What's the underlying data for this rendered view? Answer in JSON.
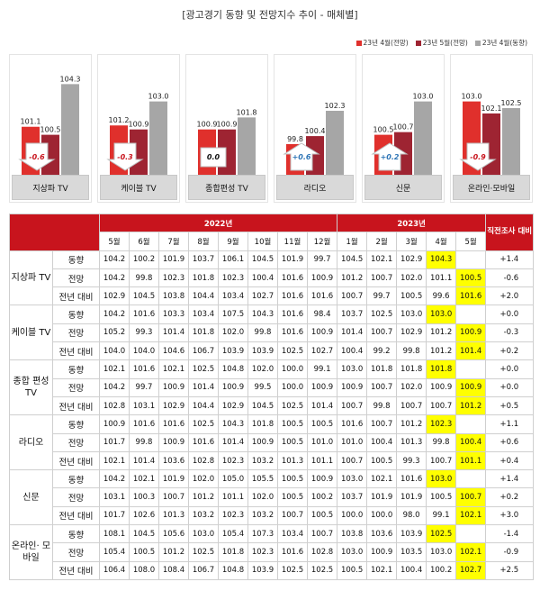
{
  "title": "[광고경기 동향 및 전망지수 추이 - 매체별]",
  "colors": {
    "s1": "#e0302c",
    "s2": "#9e2432",
    "s3": "#a6a6a6",
    "header": "#c8141d",
    "highlight": "#ffff00"
  },
  "chart_data": {
    "type": "bar",
    "legend": [
      "23년 4월(전망)",
      "23년 5월(전망)",
      "23년 4월(동향)"
    ],
    "categories": [
      "지상파 TV",
      "케이블 TV",
      "종합편성 TV",
      "라디오",
      "신문",
      "온라인·모바일"
    ],
    "series": [
      {
        "name": "23년 4월(전망)",
        "values": [
          101.1,
          101.2,
          100.9,
          99.8,
          100.5,
          103.0
        ]
      },
      {
        "name": "23년 5월(전망)",
        "values": [
          100.5,
          100.9,
          100.9,
          100.4,
          100.7,
          102.1
        ]
      },
      {
        "name": "23년 4월(동향)",
        "values": [
          104.3,
          103.0,
          101.8,
          102.3,
          103.0,
          102.5
        ]
      }
    ],
    "ylim": [
      97.5,
      105
    ],
    "changes": [
      "-0.6",
      "-0.3",
      "0.0",
      "+0.6",
      "+0.2",
      "-0.9"
    ]
  },
  "table": {
    "col_first": "",
    "year_2022": "2022년",
    "year_2023": "2023년",
    "diff_header": "직전조사 대비",
    "months_2022": [
      "5월",
      "6월",
      "7월",
      "8월",
      "9월",
      "10월",
      "11월",
      "12월"
    ],
    "months_2023": [
      "1월",
      "2월",
      "3월",
      "4월",
      "5월"
    ],
    "groups": [
      {
        "name": "지상파 TV",
        "rows": [
          {
            "type": "동향",
            "values": [
              "104.2",
              "100.2",
              "101.9",
              "103.7",
              "106.1",
              "104.5",
              "101.9",
              "99.7",
              "104.5",
              "102.1",
              "102.9",
              "104.3",
              ""
            ],
            "diff": "+1.4"
          },
          {
            "type": "전망",
            "values": [
              "104.2",
              "99.8",
              "102.3",
              "101.8",
              "102.3",
              "100.4",
              "101.6",
              "100.9",
              "101.2",
              "100.7",
              "102.0",
              "101.1",
              "100.5"
            ],
            "diff": "-0.6"
          },
          {
            "type": "전년 대비",
            "values": [
              "102.9",
              "104.5",
              "103.8",
              "104.4",
              "103.4",
              "102.7",
              "101.6",
              "101.6",
              "100.7",
              "99.7",
              "100.5",
              "99.6",
              "101.6"
            ],
            "diff": "+2.0"
          }
        ]
      },
      {
        "name": "케이블 TV",
        "rows": [
          {
            "type": "동향",
            "values": [
              "104.2",
              "101.6",
              "103.3",
              "103.4",
              "107.5",
              "104.3",
              "101.6",
              "98.4",
              "103.7",
              "102.5",
              "103.0",
              "103.0",
              ""
            ],
            "diff": "+0.0"
          },
          {
            "type": "전망",
            "values": [
              "105.2",
              "99.3",
              "101.4",
              "101.8",
              "102.0",
              "99.8",
              "101.6",
              "100.9",
              "101.4",
              "100.7",
              "102.9",
              "101.2",
              "100.9"
            ],
            "diff": "-0.3"
          },
          {
            "type": "전년 대비",
            "values": [
              "104.0",
              "104.0",
              "104.6",
              "106.7",
              "103.9",
              "103.9",
              "102.5",
              "102.7",
              "100.4",
              "99.2",
              "99.8",
              "101.2",
              "101.4"
            ],
            "diff": "+0.2"
          }
        ]
      },
      {
        "name": "종합 편성 TV",
        "rows": [
          {
            "type": "동향",
            "values": [
              "102.1",
              "101.6",
              "102.1",
              "102.5",
              "104.8",
              "102.0",
              "100.0",
              "99.1",
              "103.0",
              "101.8",
              "101.8",
              "101.8",
              ""
            ],
            "diff": "+0.0"
          },
          {
            "type": "전망",
            "values": [
              "104.2",
              "99.7",
              "100.9",
              "101.4",
              "100.9",
              "99.5",
              "100.0",
              "100.9",
              "100.9",
              "100.7",
              "102.0",
              "100.9",
              "100.9"
            ],
            "diff": "+0.0"
          },
          {
            "type": "전년 대비",
            "values": [
              "102.8",
              "103.1",
              "102.9",
              "104.4",
              "102.9",
              "104.5",
              "102.5",
              "101.4",
              "100.7",
              "99.8",
              "100.7",
              "100.7",
              "101.2"
            ],
            "diff": "+0.5"
          }
        ]
      },
      {
        "name": "라디오",
        "rows": [
          {
            "type": "동향",
            "values": [
              "100.9",
              "101.6",
              "101.6",
              "102.5",
              "104.3",
              "101.8",
              "100.5",
              "100.5",
              "101.6",
              "100.7",
              "101.2",
              "102.3",
              ""
            ],
            "diff": "+1.1"
          },
          {
            "type": "전망",
            "values": [
              "101.7",
              "99.8",
              "100.9",
              "101.6",
              "101.4",
              "100.9",
              "100.5",
              "101.0",
              "101.0",
              "100.4",
              "101.3",
              "99.8",
              "100.4"
            ],
            "diff": "+0.6"
          },
          {
            "type": "전년 대비",
            "values": [
              "102.1",
              "101.4",
              "103.6",
              "102.8",
              "102.3",
              "103.2",
              "101.3",
              "101.1",
              "100.7",
              "100.5",
              "99.3",
              "100.7",
              "101.1"
            ],
            "diff": "+0.4"
          }
        ]
      },
      {
        "name": "신문",
        "rows": [
          {
            "type": "동향",
            "values": [
              "104.2",
              "102.1",
              "101.9",
              "102.0",
              "105.0",
              "105.5",
              "100.5",
              "100.9",
              "103.0",
              "102.1",
              "101.6",
              "103.0",
              ""
            ],
            "diff": "+1.4"
          },
          {
            "type": "전망",
            "values": [
              "103.1",
              "100.3",
              "100.7",
              "101.2",
              "101.1",
              "102.0",
              "100.5",
              "100.2",
              "103.7",
              "101.9",
              "101.9",
              "100.5",
              "100.7"
            ],
            "diff": "+0.2"
          },
          {
            "type": "전년 대비",
            "values": [
              "101.7",
              "102.6",
              "101.3",
              "103.2",
              "102.3",
              "103.2",
              "100.7",
              "100.5",
              "100.0",
              "100.0",
              "98.0",
              "99.1",
              "102.1"
            ],
            "diff": "+3.0"
          }
        ]
      },
      {
        "name": "온라인· 모바일",
        "rows": [
          {
            "type": "동향",
            "values": [
              "108.1",
              "104.5",
              "105.6",
              "103.0",
              "105.4",
              "107.3",
              "103.4",
              "100.7",
              "103.8",
              "103.6",
              "103.9",
              "102.5",
              ""
            ],
            "diff": "-1.4"
          },
          {
            "type": "전망",
            "values": [
              "105.4",
              "100.5",
              "101.2",
              "102.5",
              "101.8",
              "102.3",
              "101.6",
              "102.8",
              "103.0",
              "100.9",
              "103.5",
              "103.0",
              "102.1"
            ],
            "diff": "-0.9"
          },
          {
            "type": "전년 대비",
            "values": [
              "106.4",
              "108.0",
              "108.4",
              "106.7",
              "104.8",
              "103.9",
              "102.5",
              "102.5",
              "100.5",
              "102.1",
              "100.4",
              "100.2",
              "102.7"
            ],
            "diff": "+2.5"
          }
        ]
      }
    ]
  }
}
